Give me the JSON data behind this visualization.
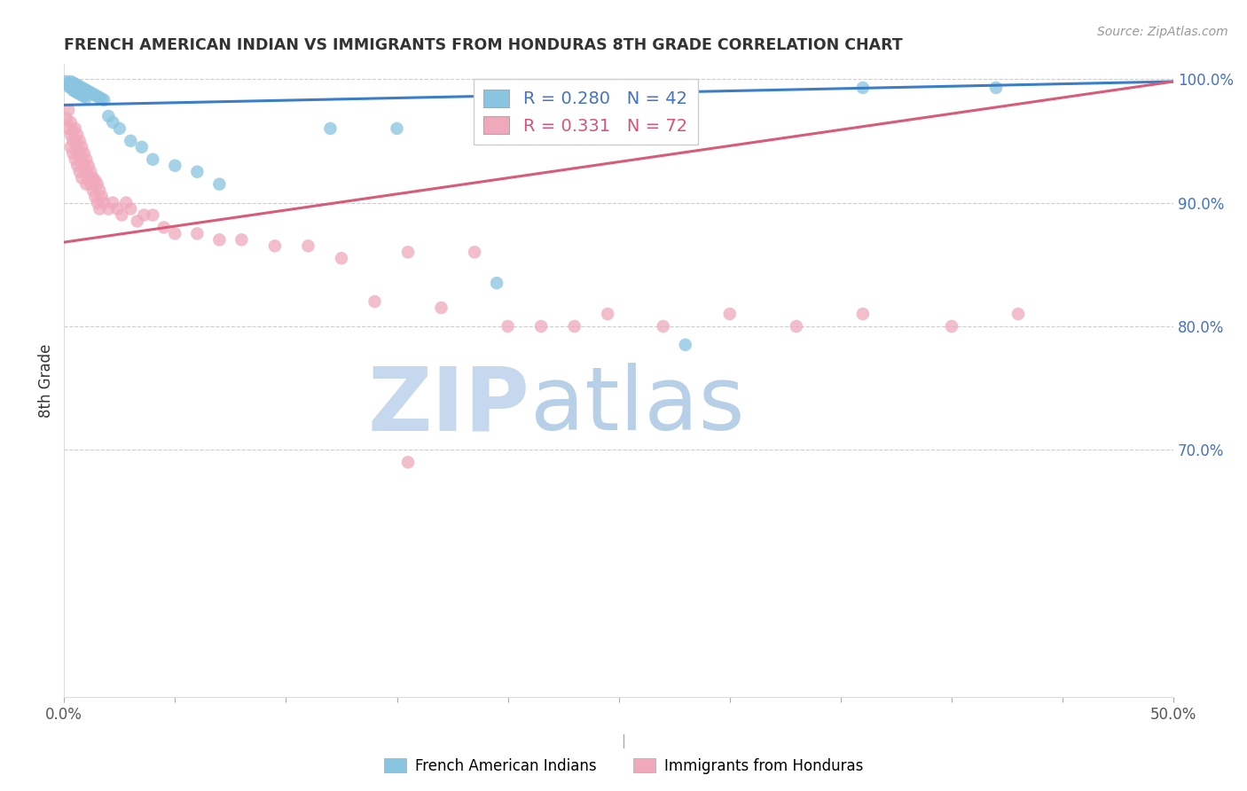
{
  "title": "FRENCH AMERICAN INDIAN VS IMMIGRANTS FROM HONDURAS 8TH GRADE CORRELATION CHART",
  "source": "Source: ZipAtlas.com",
  "ylabel": "8th Grade",
  "xlim": [
    0.0,
    0.5
  ],
  "ylim": [
    0.5,
    1.012
  ],
  "legend_blue_R": "0.280",
  "legend_blue_N": "42",
  "legend_pink_R": "0.331",
  "legend_pink_N": "72",
  "blue_color": "#89c4e0",
  "pink_color": "#f0a8bb",
  "blue_line_color": "#3a7dc9",
  "pink_line_color": "#d85c7a",
  "grid_color": "#cccccc",
  "blue_scatter_x": [
    0.001,
    0.002,
    0.002,
    0.003,
    0.003,
    0.004,
    0.004,
    0.005,
    0.005,
    0.006,
    0.006,
    0.007,
    0.007,
    0.008,
    0.008,
    0.009,
    0.009,
    0.01,
    0.01,
    0.011,
    0.012,
    0.013,
    0.014,
    0.015,
    0.016,
    0.017,
    0.018,
    0.02,
    0.022,
    0.025,
    0.03,
    0.035,
    0.04,
    0.05,
    0.06,
    0.07,
    0.12,
    0.15,
    0.195,
    0.28,
    0.36,
    0.42
  ],
  "blue_scatter_y": [
    0.998,
    0.996,
    0.994,
    0.998,
    0.993,
    0.997,
    0.991,
    0.996,
    0.99,
    0.995,
    0.989,
    0.994,
    0.988,
    0.993,
    0.987,
    0.992,
    0.986,
    0.991,
    0.985,
    0.99,
    0.989,
    0.988,
    0.987,
    0.986,
    0.985,
    0.984,
    0.983,
    0.97,
    0.965,
    0.96,
    0.95,
    0.945,
    0.935,
    0.93,
    0.925,
    0.915,
    0.96,
    0.96,
    0.835,
    0.785,
    0.993,
    0.993
  ],
  "pink_scatter_x": [
    0.001,
    0.002,
    0.002,
    0.003,
    0.003,
    0.003,
    0.004,
    0.004,
    0.004,
    0.005,
    0.005,
    0.005,
    0.006,
    0.006,
    0.006,
    0.007,
    0.007,
    0.007,
    0.008,
    0.008,
    0.008,
    0.009,
    0.009,
    0.01,
    0.01,
    0.01,
    0.011,
    0.011,
    0.012,
    0.012,
    0.013,
    0.013,
    0.014,
    0.014,
    0.015,
    0.015,
    0.016,
    0.016,
    0.017,
    0.018,
    0.02,
    0.022,
    0.024,
    0.026,
    0.028,
    0.03,
    0.033,
    0.036,
    0.04,
    0.045,
    0.05,
    0.06,
    0.07,
    0.08,
    0.095,
    0.11,
    0.125,
    0.14,
    0.155,
    0.17,
    0.185,
    0.2,
    0.215,
    0.23,
    0.245,
    0.27,
    0.3,
    0.33,
    0.36,
    0.4,
    0.43,
    0.155
  ],
  "pink_scatter_y": [
    0.968,
    0.975,
    0.96,
    0.965,
    0.955,
    0.945,
    0.958,
    0.95,
    0.94,
    0.96,
    0.95,
    0.935,
    0.955,
    0.945,
    0.93,
    0.95,
    0.94,
    0.925,
    0.945,
    0.935,
    0.92,
    0.94,
    0.93,
    0.935,
    0.925,
    0.915,
    0.93,
    0.92,
    0.925,
    0.915,
    0.92,
    0.91,
    0.918,
    0.905,
    0.915,
    0.9,
    0.91,
    0.895,
    0.905,
    0.9,
    0.895,
    0.9,
    0.895,
    0.89,
    0.9,
    0.895,
    0.885,
    0.89,
    0.89,
    0.88,
    0.875,
    0.875,
    0.87,
    0.87,
    0.865,
    0.865,
    0.855,
    0.82,
    0.86,
    0.815,
    0.86,
    0.8,
    0.8,
    0.8,
    0.81,
    0.8,
    0.81,
    0.8,
    0.81,
    0.8,
    0.81,
    0.69
  ],
  "blue_trend_x": [
    0.0,
    0.5
  ],
  "blue_trend_y": [
    0.979,
    0.998
  ],
  "pink_trend_x": [
    0.0,
    0.5
  ],
  "pink_trend_y": [
    0.868,
    0.998
  ],
  "watermark_zip_color": "#c5d8ee",
  "watermark_atlas_color": "#b8cfe8",
  "background_color": "#ffffff"
}
